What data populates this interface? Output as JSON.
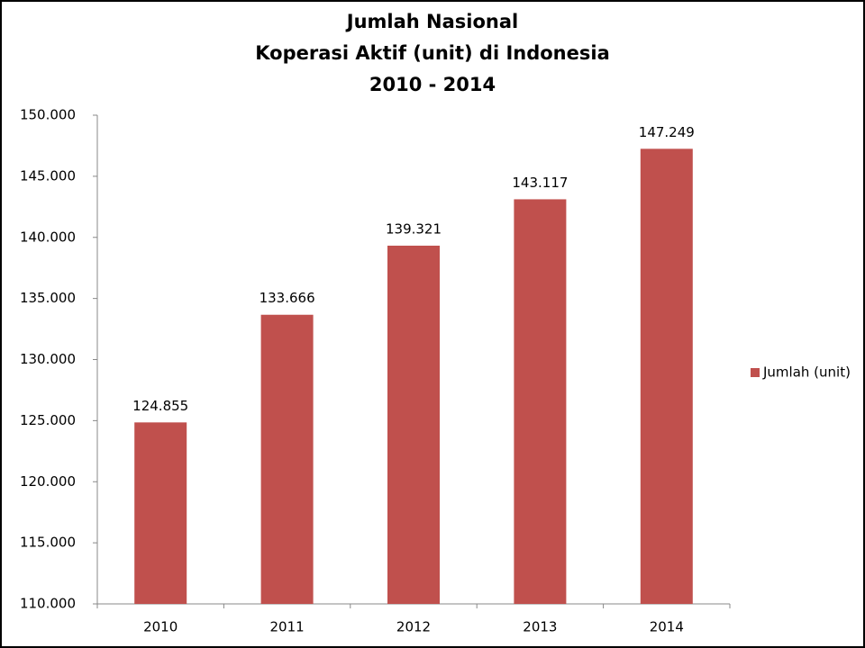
{
  "chart_data": {
    "type": "bar",
    "title": [
      "Jumlah Nasional",
      "Koperasi Aktif (unit) di Indonesia",
      "2010 - 2014"
    ],
    "categories": [
      "2010",
      "2011",
      "2012",
      "2013",
      "2014"
    ],
    "series": [
      {
        "name": "Jumlah (unit)",
        "color": "#c0504d",
        "values": [
          124855,
          133666,
          139321,
          143117,
          147249
        ],
        "value_labels": [
          "124.855",
          "133.666",
          "139.321",
          "143.117",
          "147.249"
        ]
      }
    ],
    "ylim": [
      110000,
      150000
    ],
    "yticks": [
      {
        "value": 110000,
        "label": "110.000"
      },
      {
        "value": 115000,
        "label": "115.000"
      },
      {
        "value": 120000,
        "label": "120.000"
      },
      {
        "value": 125000,
        "label": "125.000"
      },
      {
        "value": 130000,
        "label": "130.000"
      },
      {
        "value": 135000,
        "label": "135.000"
      },
      {
        "value": 140000,
        "label": "140.000"
      },
      {
        "value": 145000,
        "label": "145.000"
      },
      {
        "value": 150000,
        "label": "150.000"
      }
    ],
    "grid": false,
    "legend": "right"
  }
}
